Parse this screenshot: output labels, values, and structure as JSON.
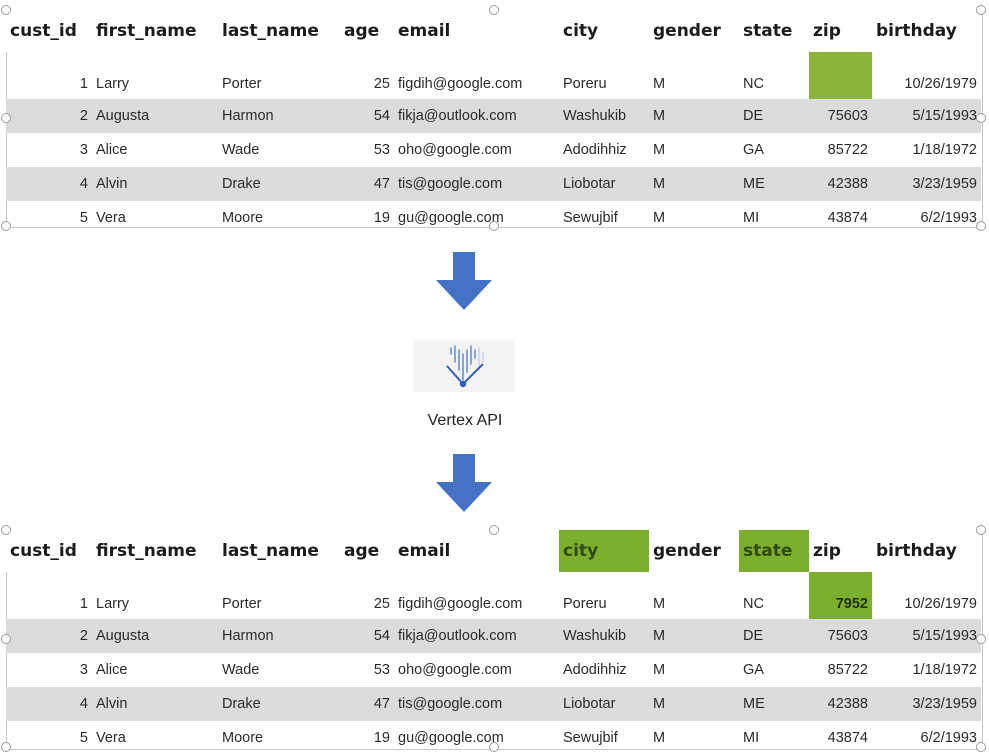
{
  "columns": [
    "cust_id",
    "first_name",
    "last_name",
    "age",
    "email",
    "city",
    "gender",
    "state",
    "zip",
    "birthday"
  ],
  "input_table": {
    "rows": [
      {
        "cust_id": "1",
        "first_name": "Larry",
        "last_name": "Porter",
        "age": "25",
        "email": "figdih@google.com",
        "city": "Poreru",
        "gender": "M",
        "state": "NC",
        "zip": "",
        "birthday": "10/26/1979"
      },
      {
        "cust_id": "2",
        "first_name": "Augusta",
        "last_name": "Harmon",
        "age": "54",
        "email": "fikja@outlook.com",
        "city": "Washukib",
        "gender": "M",
        "state": "DE",
        "zip": "75603",
        "birthday": "5/15/1993"
      },
      {
        "cust_id": "3",
        "first_name": "Alice",
        "last_name": "Wade",
        "age": "53",
        "email": "oho@google.com",
        "city": "Adodihhiz",
        "gender": "M",
        "state": "GA",
        "zip": "85722",
        "birthday": "1/18/1972"
      },
      {
        "cust_id": "4",
        "first_name": "Alvin",
        "last_name": "Drake",
        "age": "47",
        "email": "tis@google.com",
        "city": "Liobotar",
        "gender": "M",
        "state": "ME",
        "zip": "42388",
        "birthday": "3/23/1959"
      },
      {
        "cust_id": "5",
        "first_name": "Vera",
        "last_name": "Moore",
        "age": "19",
        "email": "gu@google.com",
        "city": "Sewujbif",
        "gender": "M",
        "state": "MI",
        "zip": "43874",
        "birthday": "6/2/1993"
      }
    ]
  },
  "output_table": {
    "rows": [
      {
        "cust_id": "1",
        "first_name": "Larry",
        "last_name": "Porter",
        "age": "25",
        "email": "figdih@google.com",
        "city": "Poreru",
        "gender": "M",
        "state": "NC",
        "zip": "7952",
        "birthday": "10/26/1979"
      },
      {
        "cust_id": "2",
        "first_name": "Augusta",
        "last_name": "Harmon",
        "age": "54",
        "email": "fikja@outlook.com",
        "city": "Washukib",
        "gender": "M",
        "state": "DE",
        "zip": "75603",
        "birthday": "5/15/1993"
      },
      {
        "cust_id": "3",
        "first_name": "Alice",
        "last_name": "Wade",
        "age": "53",
        "email": "oho@google.com",
        "city": "Adodihhiz",
        "gender": "M",
        "state": "GA",
        "zip": "85722",
        "birthday": "1/18/1972"
      },
      {
        "cust_id": "4",
        "first_name": "Alvin",
        "last_name": "Drake",
        "age": "47",
        "email": "tis@google.com",
        "city": "Liobotar",
        "gender": "M",
        "state": "ME",
        "zip": "42388",
        "birthday": "3/23/1959"
      },
      {
        "cust_id": "5",
        "first_name": "Vera",
        "last_name": "Moore",
        "age": "19",
        "email": "gu@google.com",
        "city": "Sewujbif",
        "gender": "M",
        "state": "MI",
        "zip": "43874",
        "birthday": "6/2/1993"
      }
    ]
  },
  "vertex": {
    "label": "Vertex API",
    "icon": "vertex-ai-icon"
  },
  "colors": {
    "highlight": "#7caf2d",
    "row_shade": "#dcdcdc",
    "arrow": "#4472c4"
  }
}
